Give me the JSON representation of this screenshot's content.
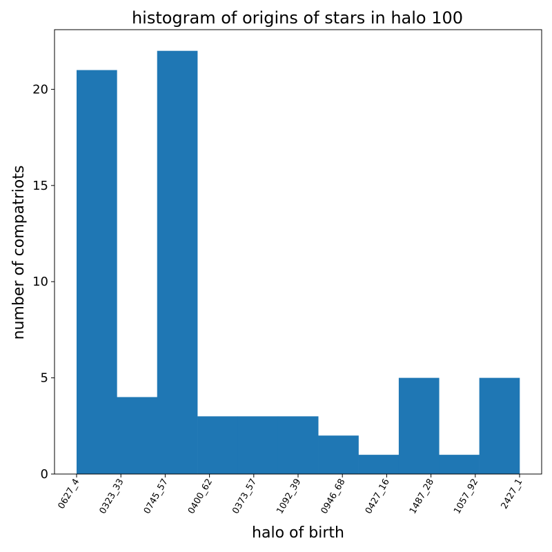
{
  "chart_data": {
    "type": "bar",
    "title": "histogram of origins of stars in halo 100",
    "xlabel": "halo of birth",
    "ylabel": "number of compatriots",
    "x_tick_labels": [
      "0627_4",
      "0323_33",
      "0745_57",
      "0400_62",
      "0373_57",
      "1092_39",
      "0946_68",
      "0427_16",
      "1487_28",
      "1057_92",
      "2427_1"
    ],
    "y_ticks": [
      0,
      5,
      10,
      15,
      20
    ],
    "ylim": [
      0,
      23.1
    ],
    "bins": 11,
    "values": [
      21,
      4,
      22,
      3,
      3,
      3,
      2,
      1,
      5,
      1,
      5
    ],
    "bar_color": "#1f77b4",
    "grid": false,
    "legend": "none"
  }
}
